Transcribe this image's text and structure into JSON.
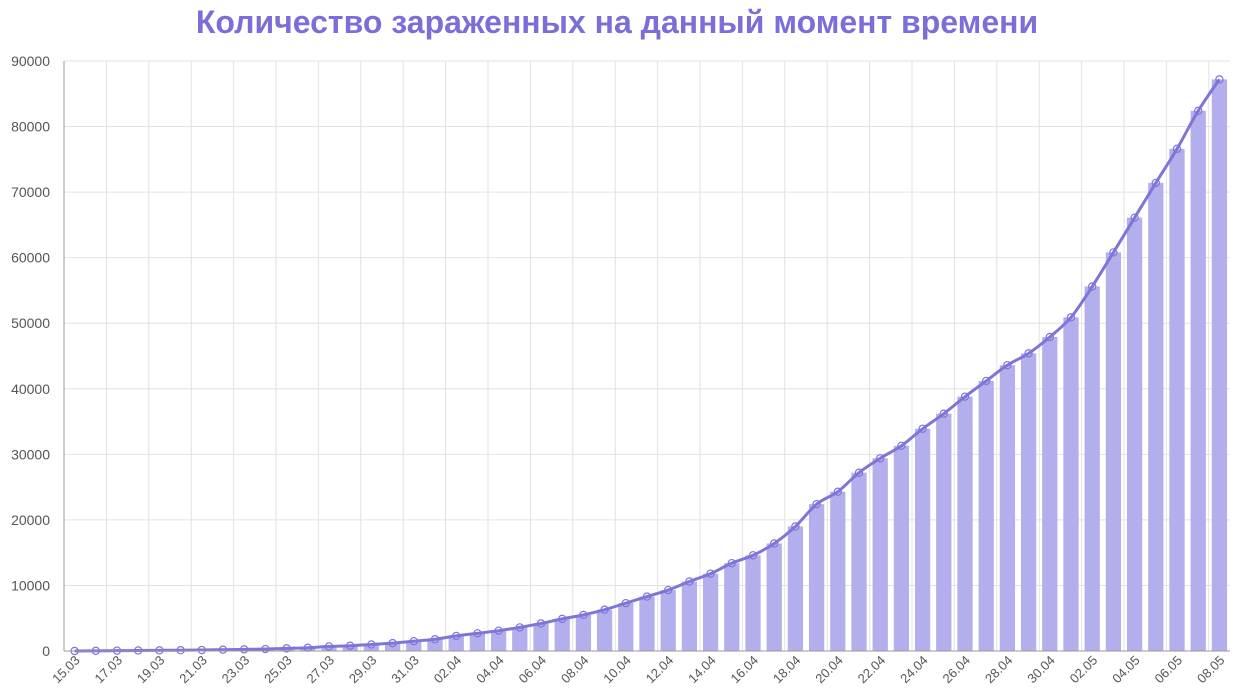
{
  "chart_data": {
    "type": "bar",
    "title": "Количество зараженных на данный момент времени",
    "xlabel": "",
    "ylabel": "",
    "ylim": [
      0,
      90000
    ],
    "yticks": [
      0,
      10000,
      20000,
      30000,
      40000,
      50000,
      60000,
      70000,
      80000,
      90000
    ],
    "grid": true,
    "categories": [
      "15.03",
      "16.03",
      "17.03",
      "18.03",
      "19.03",
      "20.03",
      "21.03",
      "22.03",
      "23.03",
      "24.03",
      "25.03",
      "26.03",
      "27.03",
      "28.03",
      "29.03",
      "30.03",
      "31.03",
      "01.04",
      "02.04",
      "03.04",
      "04.04",
      "05.04",
      "06.04",
      "07.04",
      "08.04",
      "09.04",
      "10.04",
      "11.04",
      "12.04",
      "13.04",
      "14.04",
      "15.04",
      "16.04",
      "17.04",
      "18.04",
      "19.04",
      "20.04",
      "21.04",
      "22.04",
      "23.04",
      "24.04",
      "25.04",
      "26.04",
      "27.04",
      "28.04",
      "29.04",
      "30.04",
      "01.05",
      "02.05",
      "03.05",
      "04.05",
      "05.05",
      "06.05",
      "07.05",
      "08.05"
    ],
    "xtick_labels": [
      "15.03",
      "17.03",
      "19.03",
      "21.03",
      "23.03",
      "25.03",
      "27.03",
      "29.03",
      "31.03",
      "02.04",
      "04.04",
      "06.04",
      "08.04",
      "10.04",
      "12.04",
      "14.04",
      "16.04",
      "18.04",
      "20.04",
      "22.04",
      "24.04",
      "26.04",
      "28.04",
      "30.04",
      "02.05",
      "04.05",
      "06.05",
      "08.05"
    ],
    "series": [
      {
        "values": [
          0,
          20,
          50,
          80,
          100,
          120,
          150,
          200,
          250,
          300,
          400,
          500,
          700,
          800,
          1000,
          1200,
          1500,
          1800,
          2300,
          2700,
          3100,
          3600,
          4200,
          4900,
          5500,
          6300,
          7300,
          8300,
          9300,
          10600,
          11800,
          13400,
          14600,
          16400,
          19000,
          22400,
          24300,
          27200,
          29400,
          31300,
          33900,
          36200,
          38800,
          41200,
          43600,
          45400,
          47900,
          50900,
          55600,
          60800,
          66100,
          71400,
          76600,
          82400,
          87200
        ],
        "color": "#b3aeec",
        "line_color": "#7f75d8"
      }
    ],
    "line_overlay": true,
    "colors": {
      "title": "#7a6fd8",
      "bar": "#b3aeec",
      "line": "#7f75d8",
      "grid": "#e2e2e2",
      "axis": "#999999",
      "tick_text": "#555555"
    }
  }
}
